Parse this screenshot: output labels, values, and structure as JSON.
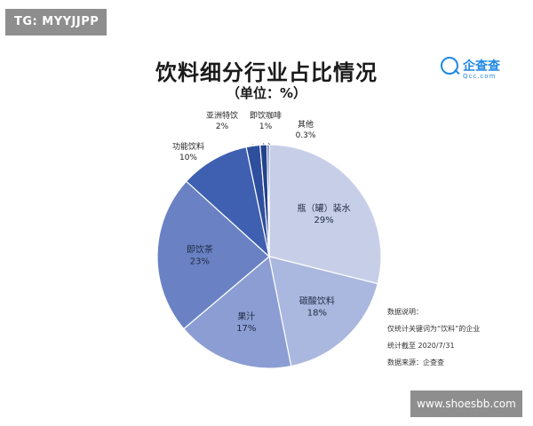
{
  "watermark_top": "TG: MYYJJPP",
  "watermark_bottom": "www.shoesbb.com",
  "logo": {
    "name": "企查查",
    "domain": "Qcc.com"
  },
  "notes": [
    "数据说明：",
    "仅统计关键词为“饮料”的企业",
    "统计截至 2020/7/31",
    "数据来源：企查查"
  ],
  "chart_data": {
    "type": "pie",
    "title": "饮料细分行业占比情况",
    "subtitle": "（单位：%）",
    "slices": [
      {
        "label": "瓶（罐）装水",
        "pct_label": "29%",
        "value": 29,
        "color": "#c7cfe8"
      },
      {
        "label": "碳酸饮料",
        "pct_label": "18%",
        "value": 18,
        "color": "#aab7de"
      },
      {
        "label": "果汁",
        "pct_label": "17%",
        "value": 17,
        "color": "#8b9dd2"
      },
      {
        "label": "即饮茶",
        "pct_label": "23%",
        "value": 23,
        "color": "#6a82c4"
      },
      {
        "label": "功能饮料",
        "pct_label": "10%",
        "value": 10,
        "color": "#3f5fb0"
      },
      {
        "label": "亚洲特饮",
        "pct_label": "2%",
        "value": 2,
        "color": "#2e4f9e"
      },
      {
        "label": "即饮咖啡",
        "pct_label": "1%",
        "value": 1,
        "color": "#23428c"
      },
      {
        "label": "其他",
        "pct_label": "0.3%",
        "value": 0.3,
        "color": "#2b4a98"
      }
    ]
  }
}
